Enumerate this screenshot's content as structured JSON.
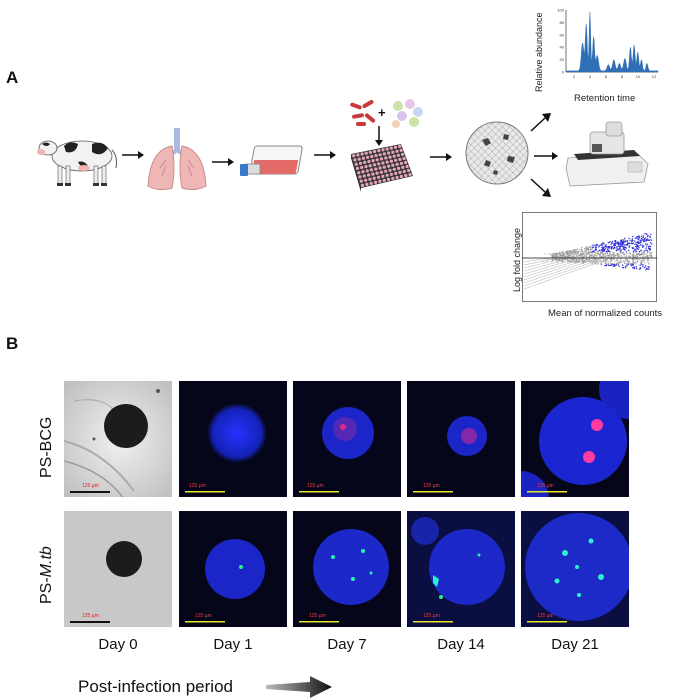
{
  "panel_a_label": "A",
  "panel_b_label": "B",
  "chromatogram": {
    "ylabel": "Relative abundance",
    "xlabel": "Retention time",
    "yticks": [
      "0",
      "20",
      "40",
      "60",
      "80",
      "100"
    ],
    "xticks": [
      "2",
      "4",
      "6",
      "8",
      "10",
      "12"
    ],
    "color": "#2f6fb5"
  },
  "ma_plot": {
    "ylabel": "Log fold change",
    "xlabel": "Mean of normalized counts",
    "color": "#2a2ad8"
  },
  "icons": [
    "cow-icon",
    "lungs-icon",
    "culture-flask-icon",
    "bacteria-icon",
    "plus-sign",
    "cells-icon",
    "well-plate-icon",
    "spheroid-icon",
    "sequencer-icon"
  ],
  "rows": [
    {
      "label_prefix": "PS-",
      "label_name": "BCG"
    },
    {
      "label_prefix": "PS-",
      "label_name": "M.tb"
    }
  ],
  "days": [
    "Day 0",
    "Day 1",
    "Day 7",
    "Day 14",
    "Day 21"
  ],
  "scale_text": "125 µm",
  "post_infection_label": "Post-infection period"
}
